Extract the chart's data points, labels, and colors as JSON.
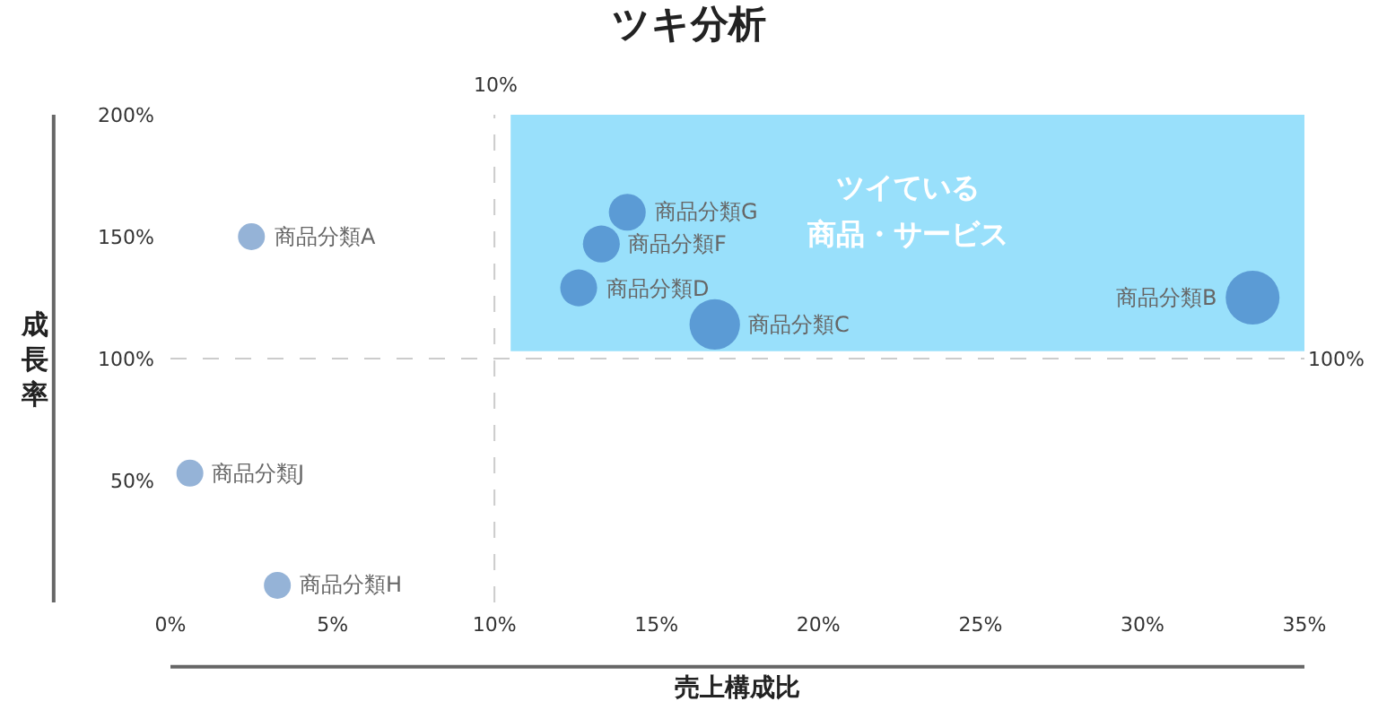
{
  "chart_data": {
    "type": "bubble",
    "title": "ツキ分析",
    "xlabel": "売上構成比",
    "ylabel": "成長率",
    "x": [
      2.5,
      33.4,
      16.8,
      12.6,
      13.3,
      14.1,
      3.3,
      0.6
    ],
    "values": [
      150,
      125,
      114,
      129,
      147,
      160,
      7,
      53
    ],
    "sizes": [
      0.25,
      1,
      0.88,
      0.47,
      0.47,
      0.47,
      0.25,
      0.25
    ],
    "colors": [
      "#95b3d7",
      "#5b9bd5",
      "#5b9bd5",
      "#5b9bd5",
      "#5b9bd5",
      "#5b9bd5",
      "#95b3d7",
      "#95b3d7"
    ],
    "annotations": [
      {
        "text": "商品分類A",
        "x": 2.5,
        "y": 150
      },
      {
        "text": "商品分類B",
        "x": 33.4,
        "y": 125
      },
      {
        "text": "商品分類C",
        "x": 16.8,
        "y": 114
      },
      {
        "text": "商品分類D",
        "x": 12.6,
        "y": 129
      },
      {
        "text": "商品分類F",
        "x": 13.3,
        "y": 147
      },
      {
        "text": "商品分類G",
        "x": 14.1,
        "y": 160
      },
      {
        "text": "商品分類H",
        "x": 3.3,
        "y": 7
      },
      {
        "text": "商品分類J",
        "x": 0.6,
        "y": 53
      }
    ],
    "xlim": [
      0,
      35
    ],
    "ylim": [
      0,
      200
    ],
    "xticks": [
      {
        "value": 0,
        "label": "0%"
      },
      {
        "value": 5,
        "label": "5%"
      },
      {
        "value": 10,
        "label": "10%"
      },
      {
        "value": 15,
        "label": "15%"
      },
      {
        "value": 20,
        "label": "20%"
      },
      {
        "value": 25,
        "label": "25%"
      },
      {
        "value": 30,
        "label": "30%"
      },
      {
        "value": 35,
        "label": "35%"
      }
    ],
    "yticks": [
      {
        "value": 50,
        "label": "50%"
      },
      {
        "value": 100,
        "label": "100%"
      },
      {
        "value": 150,
        "label": "150%"
      },
      {
        "value": 200,
        "label": "200%"
      }
    ],
    "ref_lines": [
      {
        "axis": "x",
        "value": 10,
        "label": "10%",
        "color": "#cccccc",
        "line_style": "dashed"
      },
      {
        "axis": "y",
        "value": 100,
        "label": "100%",
        "color": "#cccccc",
        "line_style": "dashed"
      }
    ],
    "bands": [
      {
        "axis": "x",
        "from": 10.5,
        "to": 35,
        "label": "ツイている商品・サービス",
        "color": "#99e0fb"
      }
    ],
    "marker": "circle",
    "grid": false,
    "legend": false
  }
}
